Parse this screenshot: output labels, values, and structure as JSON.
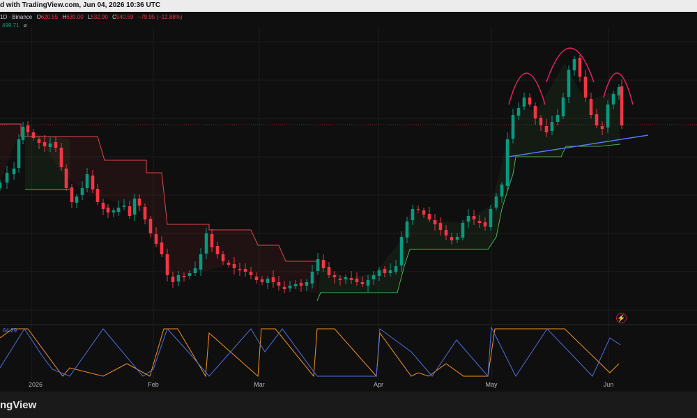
{
  "header": {
    "published_text": "d with TradingView.com, Jun 04, 2026 10:36 UTC"
  },
  "legend": {
    "symbol": "1D · Binance",
    "open_label": "O",
    "open": "620.55",
    "high_label": "H",
    "high": "630.00",
    "low_label": "L",
    "low": "532.90",
    "close_label": "C",
    "close": "540.59",
    "change": "−79.95 (−12.88%)"
  },
  "indicator": {
    "value": "499.71",
    "eye": "⌀"
  },
  "oscillator": {
    "label": "64.29"
  },
  "footer": {
    "brand": "ngView"
  },
  "icons": {
    "alert": "lightning-bolt-icon"
  },
  "colors": {
    "background": "#0f0f0f",
    "up": "#089981",
    "down": "#f23645",
    "stop_up": "#4caf50",
    "stop_down": "#e2474e",
    "trendline": "#4f7cff",
    "pattern": "#e91e63",
    "osc_orange": "#f7931a",
    "osc_blue": "#4f6fe0"
  },
  "chart_data": {
    "type": "candlestick",
    "xtick_labels": [
      "2026",
      "Feb",
      "Mar",
      "Apr",
      "May",
      "Jun"
    ],
    "price_range": [
      460,
      760
    ],
    "last_close": 540.59,
    "annotations": [
      "head-and-shoulders arcs",
      "neckline trendline"
    ]
  }
}
